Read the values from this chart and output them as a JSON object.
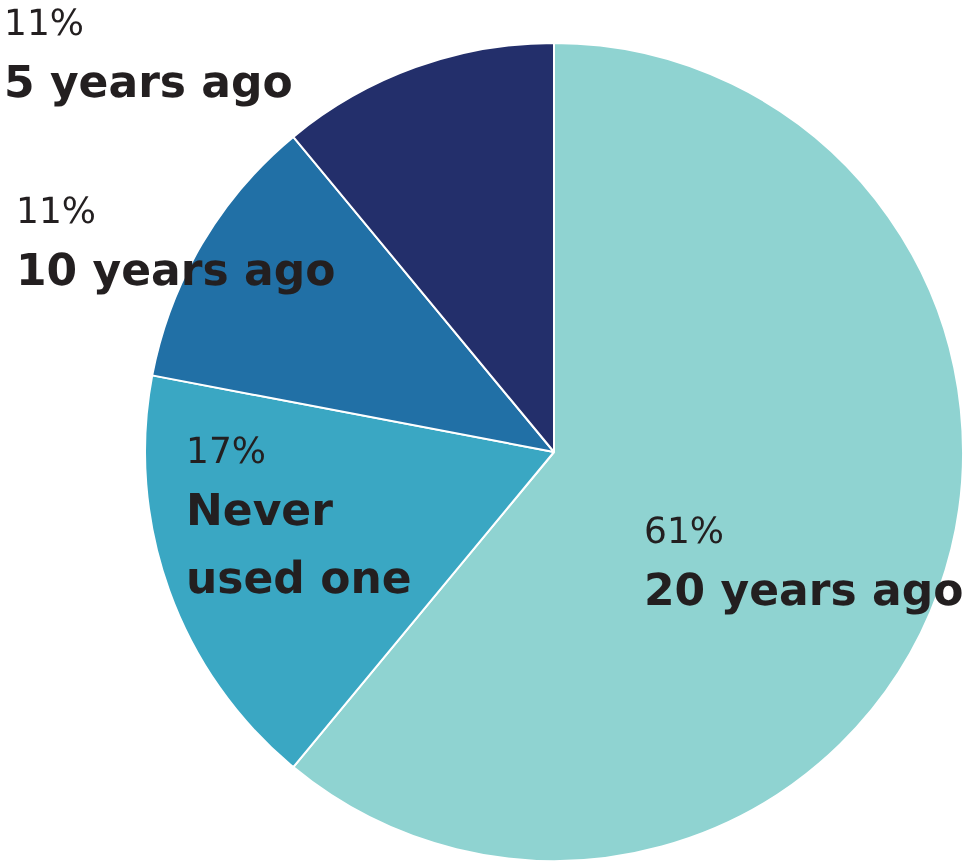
{
  "chart_data": {
    "type": "pie",
    "categories": [
      "20 years ago",
      "Never used one",
      "10 years ago",
      "5 years ago"
    ],
    "values": [
      61,
      17,
      11,
      11
    ],
    "value_labels": [
      "61%",
      "17%",
      "11%",
      "11%"
    ],
    "colors": [
      "#8fd3d1",
      "#3aa7c3",
      "#2170a6",
      "#232f6b"
    ],
    "legend": false
  }
}
